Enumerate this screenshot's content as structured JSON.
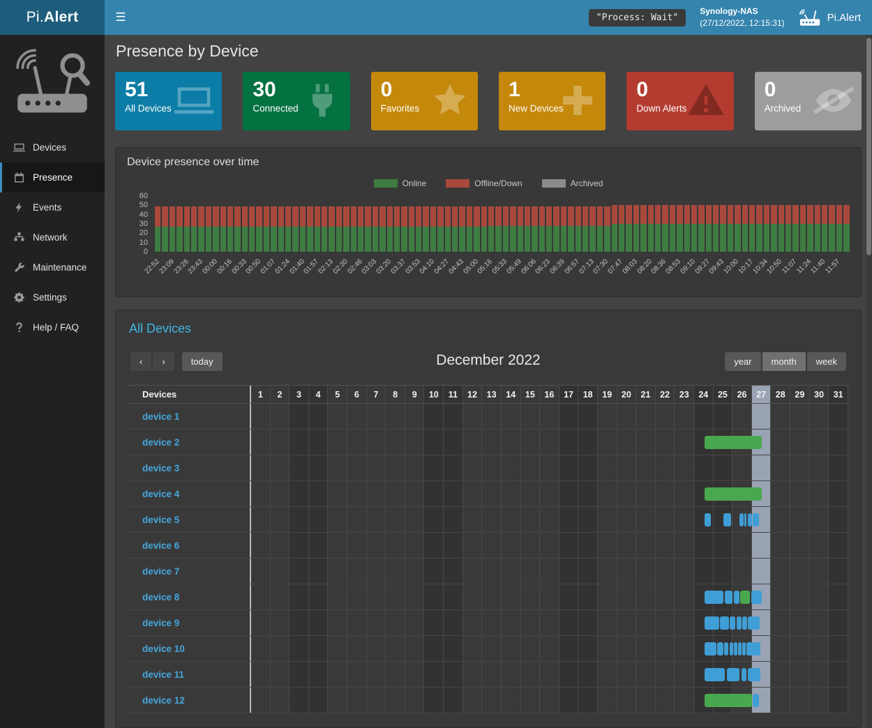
{
  "navbar": {
    "brand_prefix": "Pi.",
    "brand_suffix": "Alert",
    "menu_icon": "☰",
    "process_status": "\"Process: Wait\"",
    "host_name": "Synology-NAS",
    "host_time": "(27/12/2022, 12:15:31)",
    "app_label": "Pi.Alert"
  },
  "sidebar": {
    "items": [
      {
        "label": "Devices",
        "icon": "laptop-icon",
        "active": false
      },
      {
        "label": "Presence",
        "icon": "calendar-icon",
        "active": true
      },
      {
        "label": "Events",
        "icon": "bolt-icon",
        "active": false
      },
      {
        "label": "Network",
        "icon": "sitemap-icon",
        "active": false
      },
      {
        "label": "Maintenance",
        "icon": "wrench-icon",
        "active": false
      },
      {
        "label": "Settings",
        "icon": "gear-icon",
        "active": false
      },
      {
        "label": "Help / FAQ",
        "icon": "question-icon",
        "active": false
      }
    ]
  },
  "page": {
    "title": "Presence by Device"
  },
  "tiles": [
    {
      "value": "51",
      "label": "All Devices",
      "color": "#0b7da6",
      "icon": "laptop-icon",
      "icon_shade": "light"
    },
    {
      "value": "30",
      "label": "Connected",
      "color": "#047140",
      "icon": "plug-icon",
      "icon_shade": "light"
    },
    {
      "value": "0",
      "label": "Favorites",
      "color": "#c4880a",
      "icon": "star-icon",
      "icon_shade": "light"
    },
    {
      "value": "1",
      "label": "New Devices",
      "color": "#c4880a",
      "icon": "plus-icon",
      "icon_shade": "light"
    },
    {
      "value": "0",
      "label": "Down Alerts",
      "color": "#b43b30",
      "icon": "warning-icon",
      "icon_shade": "dark"
    },
    {
      "value": "0",
      "label": "Archived",
      "color": "#9d9d9d",
      "icon": "eye-slash-icon",
      "icon_shade": "light"
    }
  ],
  "presence_panel": {
    "title": "Device presence over time"
  },
  "chart_data": {
    "type": "bar",
    "stacked": true,
    "title": "Device presence over time",
    "ylim": [
      0,
      60
    ],
    "y_ticks": [
      60,
      50,
      40,
      30,
      20,
      10,
      0
    ],
    "legend": [
      {
        "name": "Online",
        "color": "#3e7c42"
      },
      {
        "name": "Offline/Down",
        "color": "#a9493c"
      },
      {
        "name": "Archived",
        "color": "#8b8b8b"
      }
    ],
    "x_labels": [
      "22:52",
      "23:09",
      "23:26",
      "23:43",
      "00:00",
      "00:16",
      "00:33",
      "00:50",
      "01:07",
      "01:24",
      "01:40",
      "01:57",
      "02:13",
      "02:30",
      "02:46",
      "03:03",
      "03:20",
      "03:37",
      "03:53",
      "04:10",
      "04:27",
      "04:43",
      "05:00",
      "05:16",
      "05:33",
      "05:49",
      "06:06",
      "06:23",
      "06:39",
      "06:57",
      "07:13",
      "07:30",
      "07:47",
      "08:03",
      "08:20",
      "08:36",
      "08:53",
      "09:10",
      "09:27",
      "09:43",
      "10:00",
      "10:17",
      "10:34",
      "10:50",
      "11:07",
      "11:24",
      "11:40",
      "11:57"
    ],
    "bars_per_label": 2,
    "series": [
      {
        "name": "Online",
        "color": "#3e7c42",
        "values": [
          27,
          27,
          27,
          27,
          27,
          27,
          27,
          27,
          27,
          27,
          27,
          27,
          27,
          27,
          27,
          27,
          27,
          27,
          27,
          27,
          27,
          27,
          27,
          27,
          27,
          27,
          27,
          27,
          27,
          27,
          27,
          27,
          27,
          27,
          27,
          27,
          27,
          27,
          27,
          27,
          27,
          27,
          27,
          27,
          27,
          27,
          28,
          28,
          28,
          28,
          28,
          28,
          28,
          28,
          28,
          28,
          28,
          28,
          28,
          28,
          28,
          28,
          28,
          30,
          30,
          30,
          30,
          30,
          30,
          30,
          30,
          30,
          30,
          30,
          30,
          30,
          30,
          30,
          30,
          30,
          30,
          30,
          30,
          30,
          30,
          30,
          30,
          30,
          30,
          30,
          30,
          30,
          30,
          30,
          30,
          30
        ]
      },
      {
        "name": "Offline/Down",
        "color": "#a9493c",
        "values": [
          22,
          22,
          22,
          22,
          22,
          22,
          22,
          22,
          22,
          22,
          22,
          22,
          22,
          22,
          22,
          22,
          22,
          22,
          22,
          22,
          22,
          22,
          22,
          22,
          22,
          22,
          22,
          22,
          22,
          22,
          22,
          22,
          22,
          22,
          22,
          22,
          22,
          22,
          22,
          22,
          22,
          22,
          22,
          22,
          22,
          22,
          21,
          21,
          21,
          21,
          21,
          21,
          21,
          21,
          21,
          21,
          21,
          21,
          21,
          21,
          21,
          21,
          21,
          20,
          20,
          20,
          20,
          20,
          20,
          20,
          20,
          20,
          20,
          20,
          20,
          20,
          20,
          20,
          20,
          20,
          20,
          20,
          20,
          20,
          20,
          20,
          20,
          20,
          20,
          20,
          20,
          20,
          20,
          20,
          20,
          20
        ]
      },
      {
        "name": "Archived",
        "color": "#8b8b8b",
        "values": [
          0,
          0,
          0,
          0,
          0,
          0,
          0,
          0,
          0,
          0,
          0,
          0,
          0,
          0,
          0,
          0,
          0,
          0,
          0,
          0,
          0,
          0,
          0,
          0,
          0,
          0,
          0,
          0,
          0,
          0,
          0,
          0,
          0,
          0,
          0,
          0,
          0,
          0,
          0,
          0,
          0,
          0,
          0,
          0,
          0,
          0,
          0,
          0,
          0,
          0,
          0,
          0,
          0,
          0,
          0,
          0,
          0,
          0,
          0,
          0,
          0,
          0,
          0,
          0,
          0,
          0,
          0,
          0,
          0,
          0,
          0,
          0,
          0,
          0,
          0,
          0,
          0,
          0,
          0,
          0,
          0,
          0,
          0,
          0,
          0,
          0,
          0,
          0,
          0,
          0,
          0,
          0,
          0,
          0,
          0,
          0
        ]
      }
    ]
  },
  "calendar": {
    "section_title": "All Devices",
    "nav": {
      "prev": "‹",
      "next": "›",
      "today": "today"
    },
    "views": [
      {
        "label": "year",
        "active": false
      },
      {
        "label": "month",
        "active": true
      },
      {
        "label": "week",
        "active": false
      }
    ],
    "title": "December 2022",
    "devices_header": "Devices",
    "day_numbers": [
      "1",
      "2",
      "3",
      "4",
      "5",
      "6",
      "7",
      "8",
      "9",
      "10",
      "11",
      "12",
      "13",
      "14",
      "15",
      "16",
      "17",
      "18",
      "19",
      "20",
      "21",
      "22",
      "23",
      "24",
      "25",
      "26",
      "27",
      "28",
      "29",
      "30",
      "31"
    ],
    "weekend_days": [
      3,
      4,
      10,
      11,
      17,
      18,
      24,
      25,
      31
    ],
    "today_day": 27,
    "colors": {
      "green": "#49a84f",
      "blue": "#3f9ed6"
    },
    "rows": [
      {
        "name": "device 1",
        "bars": []
      },
      {
        "name": "device 2",
        "bars": [
          {
            "start": 24.55,
            "end": 27.5,
            "color": "green"
          }
        ]
      },
      {
        "name": "device 3",
        "bars": []
      },
      {
        "name": "device 4",
        "bars": [
          {
            "start": 24.55,
            "end": 27.5,
            "color": "green"
          }
        ]
      },
      {
        "name": "device 5",
        "bars": [
          {
            "start": 24.55,
            "end": 24.85,
            "color": "blue"
          },
          {
            "start": 25.5,
            "end": 25.9,
            "color": "blue"
          },
          {
            "start": 26.35,
            "end": 26.55,
            "color": "blue"
          },
          {
            "start": 26.6,
            "end": 26.72,
            "color": "blue"
          },
          {
            "start": 26.78,
            "end": 27.0,
            "color": "blue"
          },
          {
            "start": 27.05,
            "end": 27.35,
            "color": "blue"
          }
        ]
      },
      {
        "name": "device 6",
        "bars": []
      },
      {
        "name": "device 7",
        "bars": []
      },
      {
        "name": "device 8",
        "bars": [
          {
            "start": 24.55,
            "end": 25.5,
            "color": "blue"
          },
          {
            "start": 25.58,
            "end": 25.98,
            "color": "blue"
          },
          {
            "start": 26.05,
            "end": 26.35,
            "color": "blue"
          },
          {
            "start": 26.4,
            "end": 26.9,
            "color": "green"
          },
          {
            "start": 26.95,
            "end": 27.5,
            "color": "blue"
          }
        ]
      },
      {
        "name": "device 9",
        "bars": [
          {
            "start": 24.55,
            "end": 25.3,
            "color": "blue"
          },
          {
            "start": 25.35,
            "end": 25.8,
            "color": "blue"
          },
          {
            "start": 25.85,
            "end": 26.15,
            "color": "blue"
          },
          {
            "start": 26.2,
            "end": 26.45,
            "color": "blue"
          },
          {
            "start": 26.5,
            "end": 26.75,
            "color": "blue"
          },
          {
            "start": 26.8,
            "end": 27.4,
            "color": "blue"
          }
        ]
      },
      {
        "name": "device 10",
        "bars": [
          {
            "start": 24.55,
            "end": 25.15,
            "color": "blue"
          },
          {
            "start": 25.2,
            "end": 25.5,
            "color": "blue"
          },
          {
            "start": 25.55,
            "end": 25.78,
            "color": "blue"
          },
          {
            "start": 25.83,
            "end": 26.02,
            "color": "blue"
          },
          {
            "start": 26.07,
            "end": 26.24,
            "color": "blue"
          },
          {
            "start": 26.29,
            "end": 26.46,
            "color": "blue"
          },
          {
            "start": 26.51,
            "end": 26.68,
            "color": "blue"
          },
          {
            "start": 26.73,
            "end": 27.45,
            "color": "blue"
          }
        ]
      },
      {
        "name": "device 11",
        "bars": [
          {
            "start": 24.55,
            "end": 25.6,
            "color": "blue"
          },
          {
            "start": 25.7,
            "end": 26.35,
            "color": "blue"
          },
          {
            "start": 26.45,
            "end": 26.7,
            "color": "blue"
          },
          {
            "start": 26.8,
            "end": 27.45,
            "color": "blue"
          }
        ]
      },
      {
        "name": "device 12",
        "bars": [
          {
            "start": 24.55,
            "end": 27.0,
            "color": "green"
          },
          {
            "start": 27.05,
            "end": 27.35,
            "color": "blue"
          }
        ]
      }
    ]
  }
}
